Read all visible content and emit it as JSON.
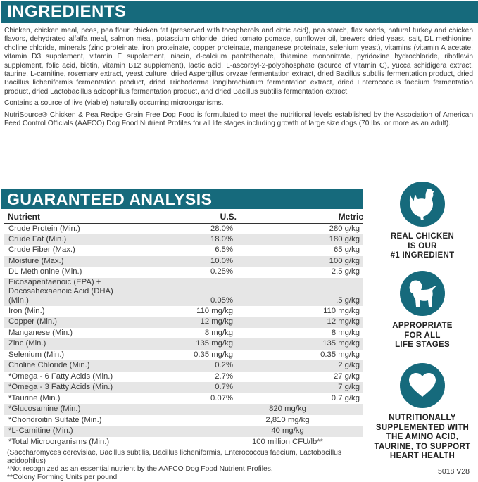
{
  "ingredients": {
    "title": "INGREDIENTS",
    "text": "Chicken, chicken meal, peas, pea flour, chicken fat (preserved with tocopherols and citric acid), pea starch, flax seeds, natural turkey and chicken flavors, dehydrated alfalfa meal, salmon meal, potassium chloride, dried tomato pomace, sunflower oil, brewers dried yeast, salt, DL methionine, choline chloride, minerals (zinc proteinate, iron proteinate, copper proteinate, manganese proteinate, selenium yeast), vitamins (vitamin A acetate, vitamin D3 supplement, vitamin E supplement, niacin, d-calcium pantothenate, thiamine mononitrate, pyridoxine hydrochloride, riboflavin supplement, folic acid, biotin, vitamin B12 supplement), lactic acid, L-ascorbyl-2-polyphosphate (source of vitamin C), yucca schidigera extract, taurine, L-carnitine, rosemary extract, yeast culture, dried Aspergillus oryzae fermentation extract, dried Bacillus subtilis fermentation product, dried Bacillus licheniformis fermentation product, dried Trichoderma longibrachiatum fermentation extract, dried Enterococcus faecium fermentation product, dried Lactobacillus acidophilus fermentation product, and dried Bacillus subtilis fermentation extract.",
    "microorganisms_note": "Contains a source of live (viable) naturally occurring microorganisms.",
    "aafco_statement": "NutriSource® Chicken & Pea Recipe Grain Free Dog Food is formulated to meet the nutritional levels established by the Association of American Feed Control Officials (AAFCO) Dog Food Nutrient Profiles for all life stages including growth of large size dogs (70 lbs. or more as an adult)."
  },
  "analysis": {
    "title": "GUARANTEED ANALYSIS",
    "headers": [
      "Nutrient",
      "U.S.",
      "Metric"
    ],
    "rows": [
      {
        "nutrient": "Crude Protein (Min.)",
        "us": "28.0%",
        "metric": "280 g/kg"
      },
      {
        "nutrient": "Crude Fat (Min.)",
        "us": "18.0%",
        "metric": "180 g/kg"
      },
      {
        "nutrient": "Crude Fiber (Max.)",
        "us": "6.5%",
        "metric": "65 g/kg"
      },
      {
        "nutrient": "Moisture (Max.)",
        "us": "10.0%",
        "metric": "100 g/kg"
      },
      {
        "nutrient": "DL Methionine (Min.)",
        "us": "0.25%",
        "metric": "2.5 g/kg"
      },
      {
        "nutrient": "Eicosapentaenoic (EPA) +",
        "nutrient2": "Docosahexaenoic Acid (DHA) (Min.)",
        "us": "0.05%",
        "metric": ".5 g/kg"
      },
      {
        "nutrient": "Iron (Min.)",
        "us": "110 mg/kg",
        "metric": "110 mg/kg"
      },
      {
        "nutrient": "Copper (Min.)",
        "us": "12 mg/kg",
        "metric": "12 mg/kg"
      },
      {
        "nutrient": "Manganese (Min.)",
        "us": "8 mg/kg",
        "metric": "8 mg/kg"
      },
      {
        "nutrient": "Zinc (Min.)",
        "us": "135 mg/kg",
        "metric": "135 mg/kg"
      },
      {
        "nutrient": "Selenium (Min.)",
        "us": "0.35 mg/kg",
        "metric": "0.35 mg/kg"
      },
      {
        "nutrient": "Choline Chloride (Min.)",
        "us": "0.2%",
        "metric": "2 g/kg"
      },
      {
        "nutrient": "*Omega - 6 Fatty Acids (Min.)",
        "us": "2.7%",
        "metric": "27 g/kg"
      },
      {
        "nutrient": "*Omega - 3 Fatty Acids (Min.)",
        "us": "0.7%",
        "metric": "7 g/kg"
      },
      {
        "nutrient": "*Taurine (Min.)",
        "us": "0.07%",
        "metric": "0.7 g/kg"
      }
    ],
    "merged_rows": [
      {
        "nutrient": "*Glucosamine (Min.)",
        "value": "820 mg/kg"
      },
      {
        "nutrient": "*Chondroitin Sulfate (Min.)",
        "value": "2,810 mg/kg"
      },
      {
        "nutrient": "*L-Carnitine (Min.)",
        "value": "40 mg/kg"
      },
      {
        "nutrient": "*Total Microorganisms (Min.)",
        "value": "100 million CFU/lb**"
      }
    ],
    "footnotes": [
      "(Saccharomyces cerevisiae, Bacillus subtilis, Bacillus licheniformis, Enterococcus faecium, Lactobacillus acidophilus)",
      "*Not recognized as an essential nutrient by the AAFCO Dog Food Nutrient Profiles.",
      "**Colony Forming Units per pound"
    ]
  },
  "badges": [
    {
      "icon": "chicken-icon",
      "lines": [
        "REAL CHICKEN",
        "IS OUR",
        "#1 INGREDIENT"
      ]
    },
    {
      "icon": "puppy-icon",
      "lines": [
        "APPROPRIATE",
        "FOR ALL",
        "LIFE STAGES"
      ]
    },
    {
      "icon": "heart-icon",
      "lines": [
        "NUTRITIONALLY",
        "SUPPLEMENTED WITH",
        "THE AMINO ACID,",
        "TAURINE, TO SUPPORT",
        "HEART HEALTH"
      ]
    }
  ],
  "code": "5018 V28",
  "colors": {
    "accent": "#166a7c",
    "stripe": "#e6e6e6"
  }
}
